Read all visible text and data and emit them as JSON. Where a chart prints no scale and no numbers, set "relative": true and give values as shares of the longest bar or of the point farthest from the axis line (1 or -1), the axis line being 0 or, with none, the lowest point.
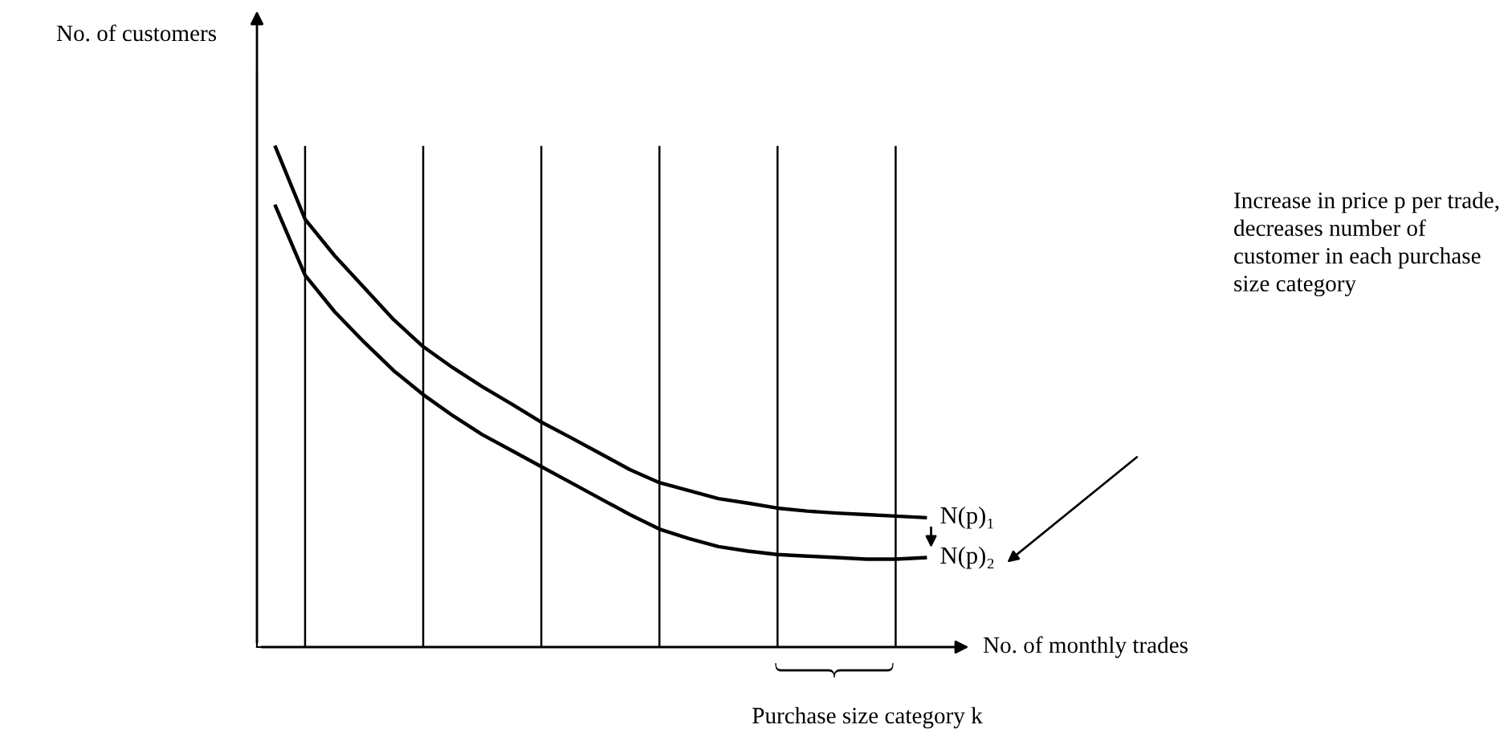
{
  "chart_data": {
    "type": "line",
    "relative": true,
    "ylabel": "No. of customers",
    "xlabel": "No. of monthly trades",
    "categories": [
      null,
      null,
      null,
      null,
      null,
      null,
      null,
      null,
      null,
      null,
      null,
      null,
      null,
      null,
      null,
      null,
      null,
      null,
      null,
      null,
      null,
      null,
      null
    ],
    "series": [
      {
        "name": "N(p)₁",
        "color": "#000000",
        "values": [
          1,
          0.856,
          0.783,
          0.719,
          0.655,
          0.601,
          0.559,
          0.521,
          0.486,
          0.45,
          0.419,
          0.387,
          0.355,
          0.329,
          0.313,
          0.297,
          0.288,
          0.278,
          0.272,
          0.268,
          0.265,
          0.262,
          0.259
        ]
      },
      {
        "name": "N(p)₂",
        "color": "#000000",
        "values": [
          0.882,
          0.744,
          0.671,
          0.61,
          0.553,
          0.505,
          0.463,
          0.425,
          0.393,
          0.361,
          0.329,
          0.297,
          0.265,
          0.236,
          0.217,
          0.201,
          0.192,
          0.185,
          0.182,
          0.179,
          0.176,
          0.176,
          0.179
        ]
      }
    ],
    "annotations": [
      "Increase in price p per trade, decreases number of customer in each purchase size category",
      "Purchase size category k"
    ],
    "grid": "x",
    "legend": "right",
    "marker": "none",
    "line_style": "solid"
  }
}
